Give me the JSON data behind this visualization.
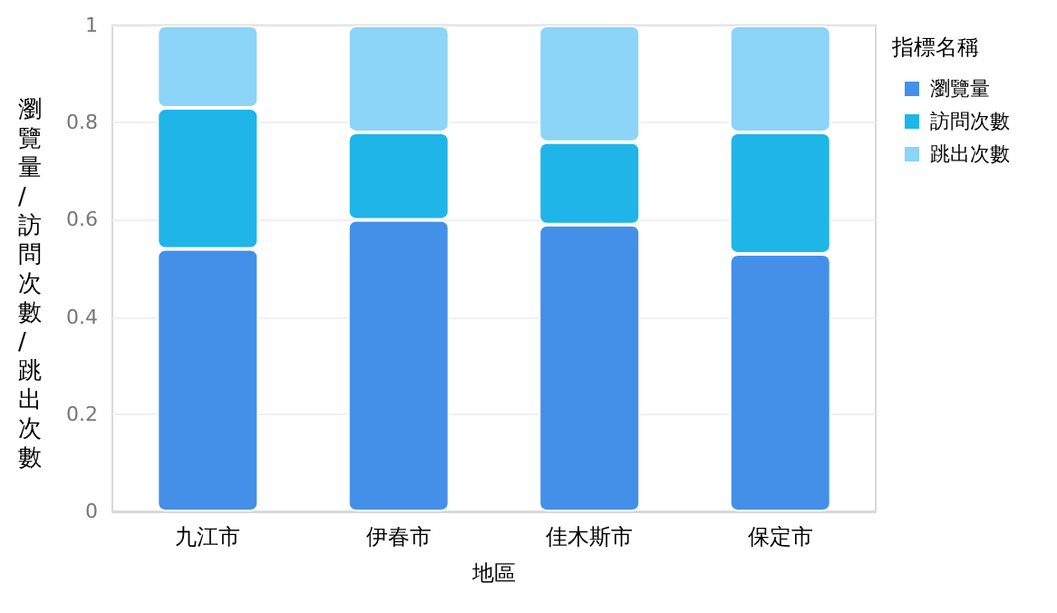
{
  "chart_data": {
    "type": "bar",
    "stacked": true,
    "xlabel": "地區",
    "ylabel": "瀏覽量/訪問次數/跳出次數",
    "legend_title": "指標名稱",
    "categories": [
      "九江市",
      "伊春市",
      "佳木斯市",
      "保定市"
    ],
    "series": [
      {
        "name": "瀏覽量",
        "color": "#4490e8",
        "values": [
          0.54,
          0.6,
          0.59,
          0.53
        ]
      },
      {
        "name": "訪問次數",
        "color": "#1fb5e8",
        "values": [
          0.29,
          0.18,
          0.17,
          0.25
        ]
      },
      {
        "name": "跳出次數",
        "color": "#8cd4f8",
        "values": [
          0.17,
          0.22,
          0.24,
          0.22
        ]
      }
    ],
    "ylim": [
      0,
      1
    ],
    "yticks": [
      0,
      0.2,
      0.4,
      0.6,
      0.8,
      1
    ],
    "grid": "y",
    "legend": "top right"
  }
}
